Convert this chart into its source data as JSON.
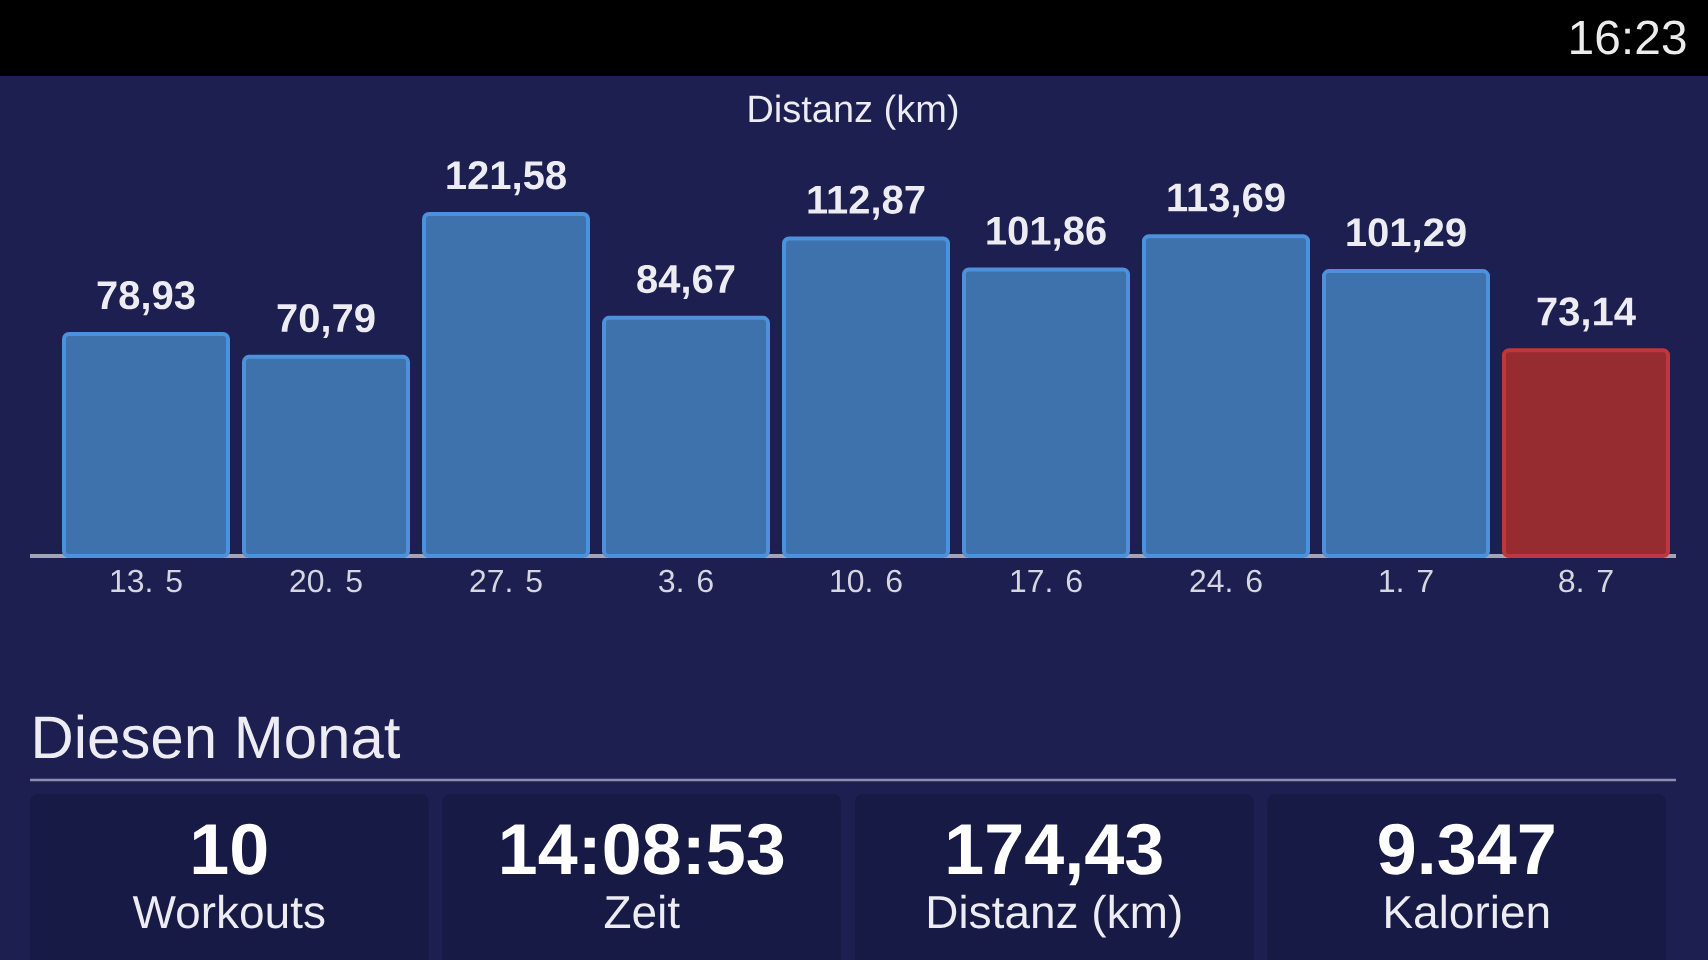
{
  "chart_data": [
    {
      "type": "other",
      "annotations": [
        "16:23"
      ]
    },
    {
      "type": "bar",
      "title": "Distanz (km)",
      "categories": [
        "13. 5",
        "20. 5",
        "27. 5",
        "3. 6",
        "10. 6",
        "17. 6",
        "24. 6",
        "1. 7",
        "8. 7"
      ],
      "values": [
        78.93,
        70.79,
        121.58,
        84.67,
        112.87,
        101.86,
        113.69,
        101.29,
        73.14
      ],
      "value_labels": [
        "78,93",
        "70,79",
        "121,58",
        "84,67",
        "112,87",
        "101,86",
        "113,69",
        "101,29",
        "73,14"
      ],
      "colors": [
        "#3d72ad",
        "#3d72ad",
        "#3d72ad",
        "#3d72ad",
        "#3d72ad",
        "#3d72ad",
        "#3d72ad",
        "#3d72ad",
        "#962b30"
      ]
    },
    {
      "type": "other",
      "title": "Diesen Monat",
      "annotations": [
        "10",
        "Workouts",
        "14:08:53",
        "Zeit",
        "174,43",
        "Distanz (km)",
        "9.347",
        "Kalorien"
      ]
    }
  ]
}
